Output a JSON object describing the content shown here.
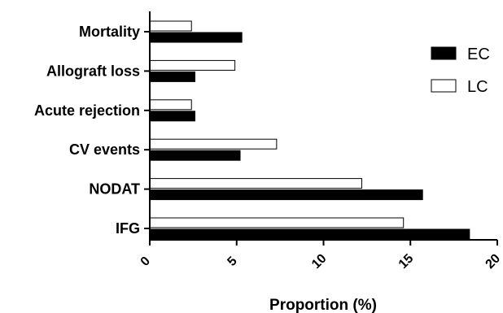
{
  "chart_data": {
    "type": "bar",
    "orientation": "horizontal",
    "categories": [
      "Mortality",
      "Allograft loss",
      "Acute rejection",
      "CV events",
      "NODAT",
      "IFG"
    ],
    "series": [
      {
        "name": "EC",
        "values": [
          5.3,
          2.6,
          2.6,
          5.2,
          15.7,
          18.4
        ],
        "color": "#000000"
      },
      {
        "name": "LC",
        "values": [
          2.4,
          4.9,
          2.4,
          7.3,
          12.2,
          14.6
        ],
        "color": "#ffffff"
      }
    ],
    "xlabel": "Proportion (%)",
    "ylabel": "",
    "xlim": [
      0,
      20
    ],
    "xticks": [
      "0",
      "5",
      "10",
      "15",
      "20"
    ],
    "grid": false,
    "legend_position": "right"
  }
}
